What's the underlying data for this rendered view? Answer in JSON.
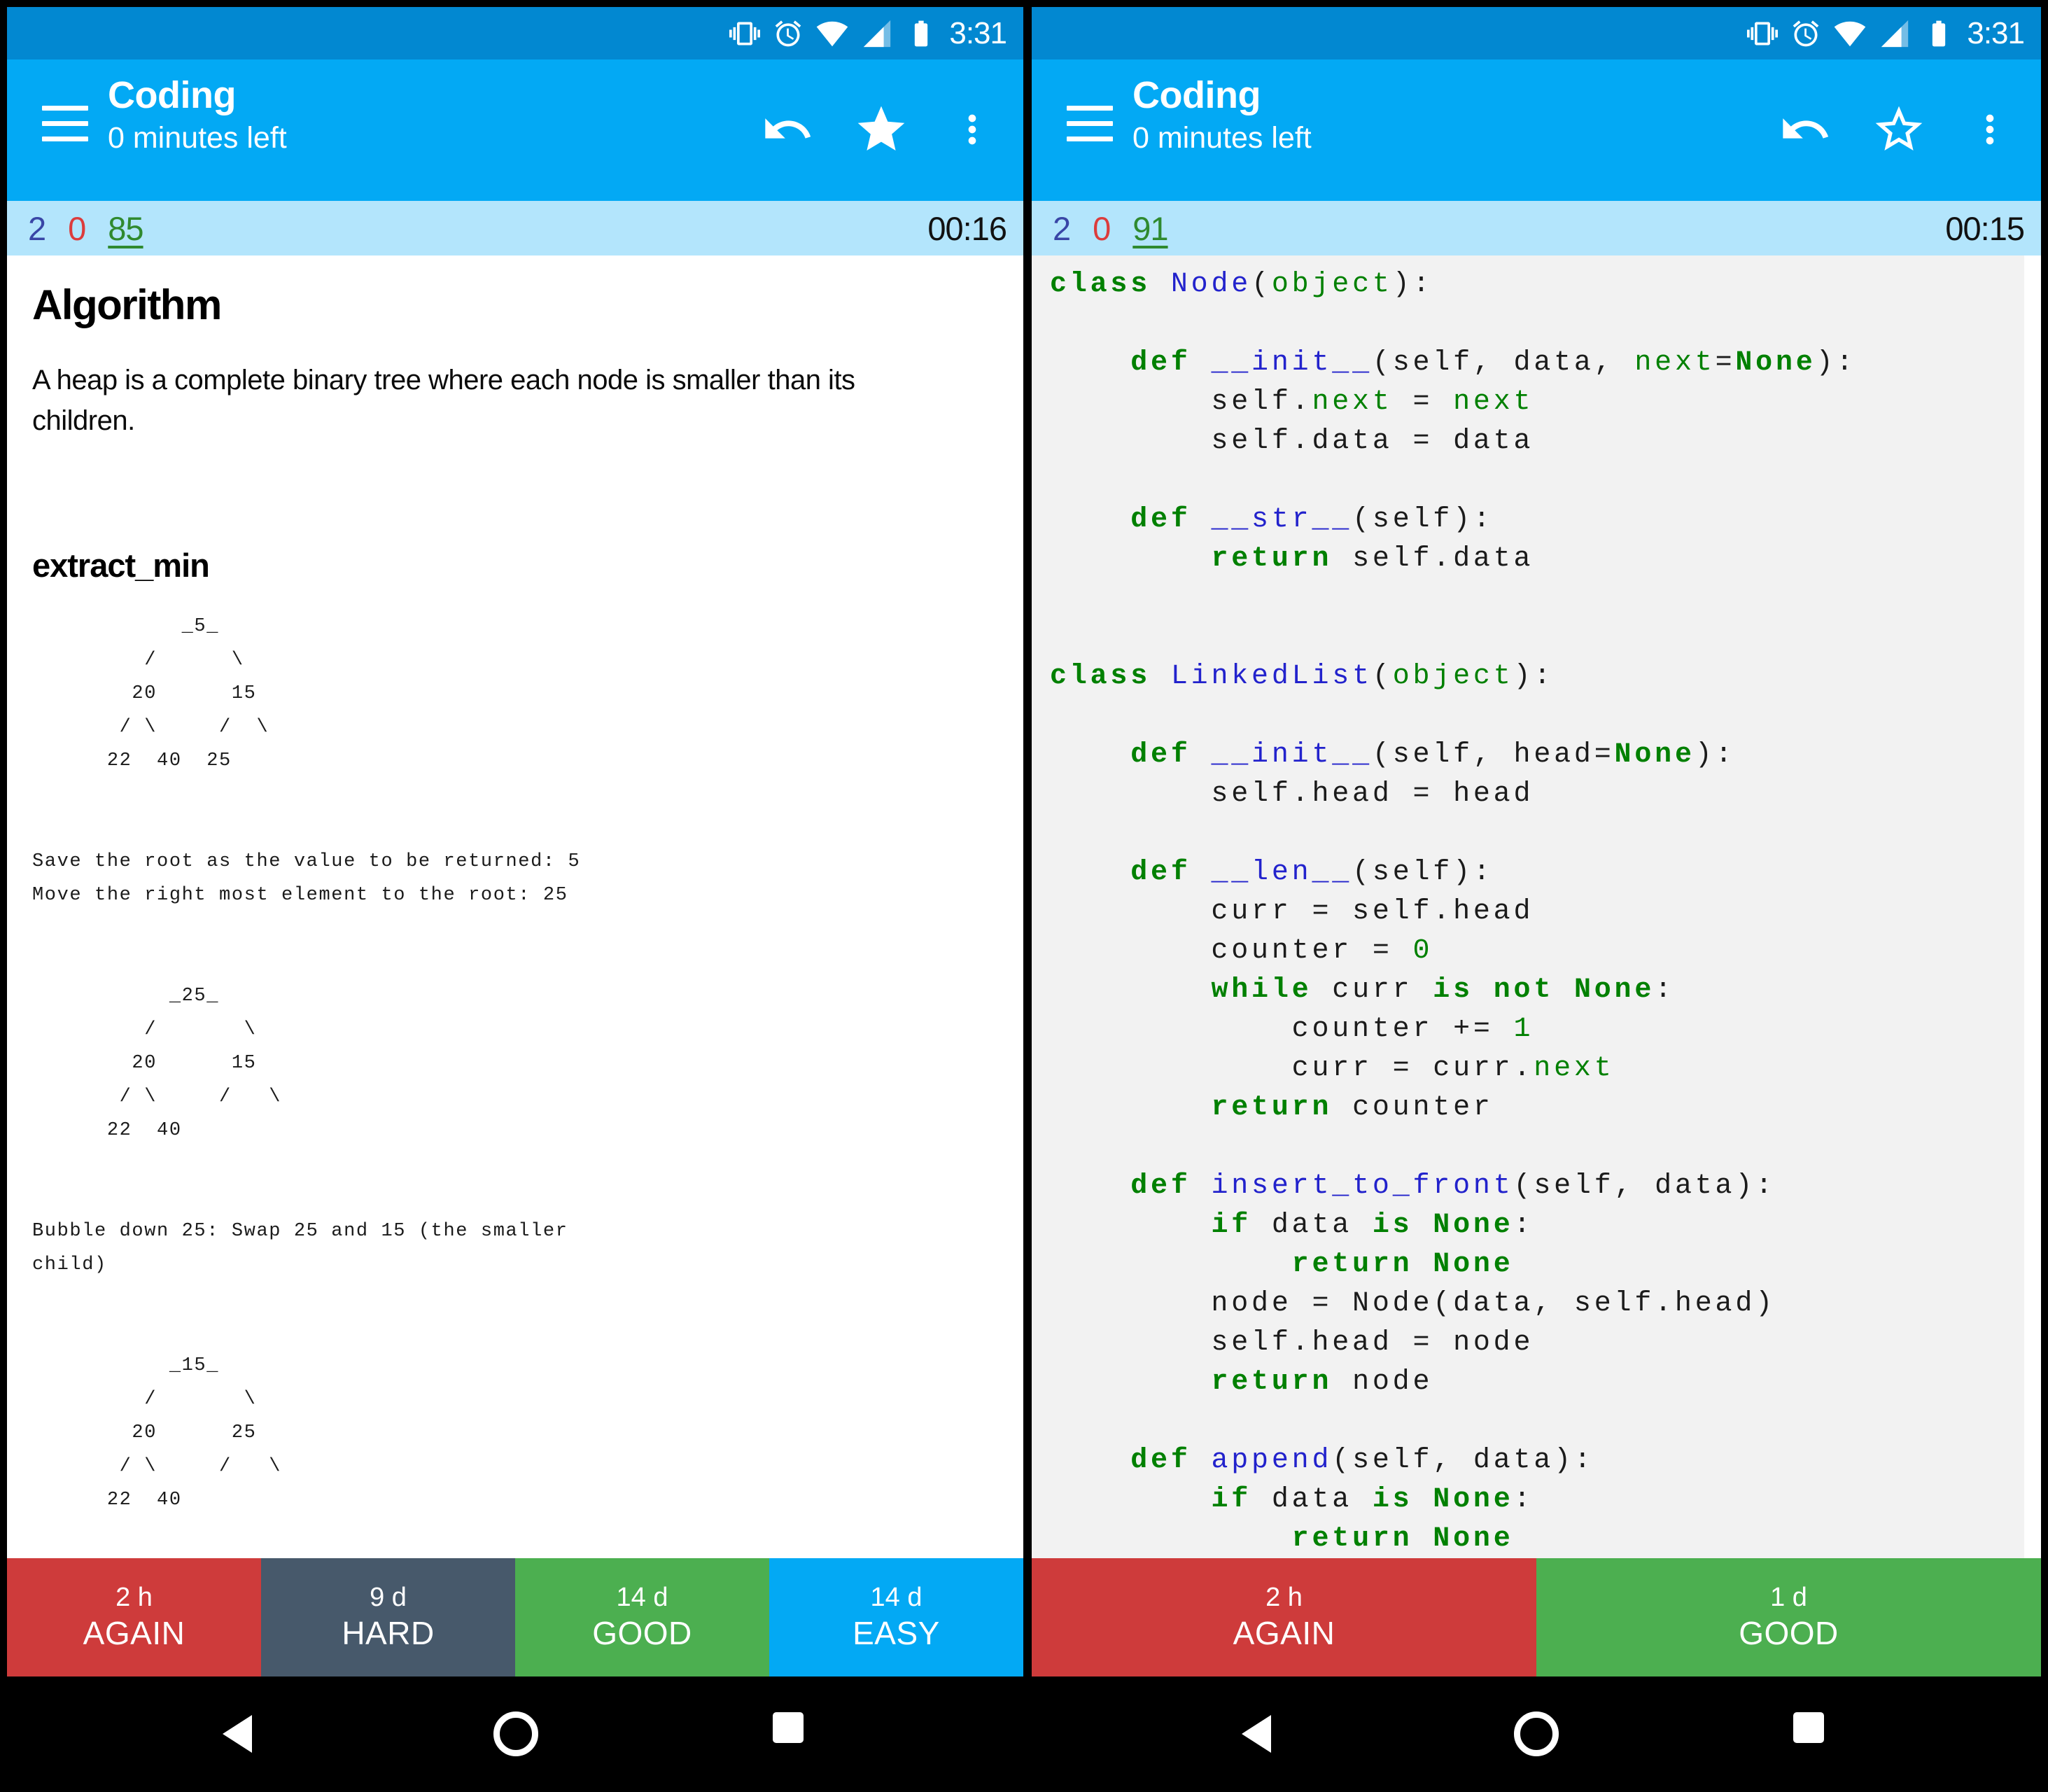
{
  "status": {
    "time": "3:31"
  },
  "appbar": {
    "title": "Coding",
    "subtitle": "0 minutes left"
  },
  "colors": {
    "status_bar": "#0288D1",
    "app_bar": "#03A9F4",
    "counter_bar": "#B3E5FC",
    "again": "#CE3B3B",
    "hard": "#47596B",
    "good": "#4CAF50",
    "easy": "#03A9F4"
  },
  "left": {
    "counts": {
      "new": "2",
      "learn": "0",
      "review": "85"
    },
    "timer": "00:16",
    "card": {
      "heading": "Algorithm",
      "paragraph": "A heap is a complete binary tree where each node is smaller than its children.",
      "subheading": "extract_min",
      "mono": "            _5_\n         /      \\\n        20      15\n       / \\     /  \\\n      22  40  25\n\n\nSave the root as the value to be returned: 5\nMove the right most element to the root: 25\n\n\n           _25_\n         /       \\\n        20      15\n       / \\     /   \\\n      22  40\n\n\nBubble down 25: Swap 25 and 15 (the smaller\nchild)\n\n\n           _15_\n         /       \\\n        20      25\n       / \\     /   \\\n      22  40"
    },
    "buttons": [
      {
        "time": "2 h",
        "label": "AGAIN"
      },
      {
        "time": "9 d",
        "label": "HARD"
      },
      {
        "time": "14 d",
        "label": "GOOD"
      },
      {
        "time": "14 d",
        "label": "EASY"
      }
    ]
  },
  "right": {
    "counts": {
      "new": "2",
      "learn": "0",
      "review": "91"
    },
    "timer": "00:15",
    "code_lines": [
      [
        [
          "k",
          "class"
        ],
        [
          "p",
          " "
        ],
        [
          "n",
          "Node"
        ],
        [
          "p",
          "("
        ],
        [
          "b",
          "object"
        ],
        [
          "p",
          "):"
        ]
      ],
      [],
      [
        [
          "p",
          "    "
        ],
        [
          "k",
          "def"
        ],
        [
          "p",
          " "
        ],
        [
          "n",
          "__init__"
        ],
        [
          "p",
          "(self, data, "
        ],
        [
          "b",
          "next"
        ],
        [
          "p",
          "="
        ],
        [
          "k",
          "None"
        ],
        [
          "p",
          "):"
        ]
      ],
      [
        [
          "p",
          "        self."
        ],
        [
          "b",
          "next"
        ],
        [
          "p",
          " = "
        ],
        [
          "b",
          "next"
        ]
      ],
      [
        [
          "p",
          "        self.data = data"
        ]
      ],
      [],
      [
        [
          "p",
          "    "
        ],
        [
          "k",
          "def"
        ],
        [
          "p",
          " "
        ],
        [
          "n",
          "__str__"
        ],
        [
          "p",
          "(self):"
        ]
      ],
      [
        [
          "p",
          "        "
        ],
        [
          "k",
          "return"
        ],
        [
          "p",
          " self.data"
        ]
      ],
      [],
      [],
      [
        [
          "k",
          "class"
        ],
        [
          "p",
          " "
        ],
        [
          "n",
          "LinkedList"
        ],
        [
          "p",
          "("
        ],
        [
          "b",
          "object"
        ],
        [
          "p",
          "):"
        ]
      ],
      [],
      [
        [
          "p",
          "    "
        ],
        [
          "k",
          "def"
        ],
        [
          "p",
          " "
        ],
        [
          "n",
          "__init__"
        ],
        [
          "p",
          "(self, head="
        ],
        [
          "k",
          "None"
        ],
        [
          "p",
          "):"
        ]
      ],
      [
        [
          "p",
          "        self.head = head"
        ]
      ],
      [],
      [
        [
          "p",
          "    "
        ],
        [
          "k",
          "def"
        ],
        [
          "p",
          " "
        ],
        [
          "n",
          "__len__"
        ],
        [
          "p",
          "(self):"
        ]
      ],
      [
        [
          "p",
          "        curr = self.head"
        ]
      ],
      [
        [
          "p",
          "        counter = "
        ],
        [
          "b",
          "0"
        ]
      ],
      [
        [
          "p",
          "        "
        ],
        [
          "k",
          "while"
        ],
        [
          "p",
          " curr "
        ],
        [
          "k",
          "is"
        ],
        [
          "p",
          " "
        ],
        [
          "k",
          "not"
        ],
        [
          "p",
          " "
        ],
        [
          "k",
          "None"
        ],
        [
          "p",
          ":"
        ]
      ],
      [
        [
          "p",
          "            counter += "
        ],
        [
          "b",
          "1"
        ]
      ],
      [
        [
          "p",
          "            curr = curr."
        ],
        [
          "b",
          "next"
        ]
      ],
      [
        [
          "p",
          "        "
        ],
        [
          "k",
          "return"
        ],
        [
          "p",
          " counter"
        ]
      ],
      [],
      [
        [
          "p",
          "    "
        ],
        [
          "k",
          "def"
        ],
        [
          "p",
          " "
        ],
        [
          "n",
          "insert_to_front"
        ],
        [
          "p",
          "(self, data):"
        ]
      ],
      [
        [
          "p",
          "        "
        ],
        [
          "k",
          "if"
        ],
        [
          "p",
          " data "
        ],
        [
          "k",
          "is"
        ],
        [
          "p",
          " "
        ],
        [
          "k",
          "None"
        ],
        [
          "p",
          ":"
        ]
      ],
      [
        [
          "p",
          "            "
        ],
        [
          "k",
          "return"
        ],
        [
          "p",
          " "
        ],
        [
          "k",
          "None"
        ]
      ],
      [
        [
          "p",
          "        node = Node(data, self.head)"
        ]
      ],
      [
        [
          "p",
          "        self.head = node"
        ]
      ],
      [
        [
          "p",
          "        "
        ],
        [
          "k",
          "return"
        ],
        [
          "p",
          " node"
        ]
      ],
      [],
      [
        [
          "p",
          "    "
        ],
        [
          "k",
          "def"
        ],
        [
          "p",
          " "
        ],
        [
          "n",
          "append"
        ],
        [
          "p",
          "(self, data):"
        ]
      ],
      [
        [
          "p",
          "        "
        ],
        [
          "k",
          "if"
        ],
        [
          "p",
          " data "
        ],
        [
          "k",
          "is"
        ],
        [
          "p",
          " "
        ],
        [
          "k",
          "None"
        ],
        [
          "p",
          ":"
        ]
      ],
      [
        [
          "p",
          "            "
        ],
        [
          "k",
          "return"
        ],
        [
          "p",
          " "
        ],
        [
          "k",
          "None"
        ]
      ]
    ],
    "buttons": [
      {
        "time": "2 h",
        "label": "AGAIN"
      },
      {
        "time": "1 d",
        "label": "GOOD"
      }
    ]
  }
}
